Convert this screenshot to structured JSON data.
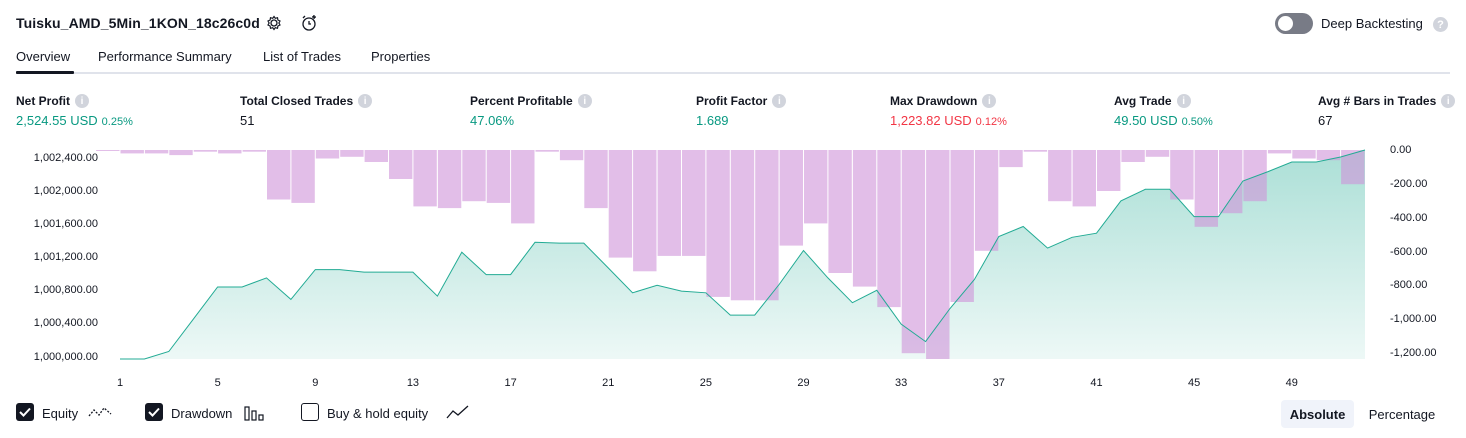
{
  "header": {
    "strategy_title": "Tuisku_AMD_5Min_1KON_18c26c0d",
    "deep_backtesting_label": "Deep Backtesting",
    "deep_backtesting_on": false,
    "help_glyph": "?"
  },
  "tabs": [
    {
      "label": "Overview",
      "active": true
    },
    {
      "label": "Performance Summary",
      "active": false
    },
    {
      "label": "List of Trades",
      "active": false
    },
    {
      "label": "Properties",
      "active": false
    }
  ],
  "metrics": [
    {
      "label": "Net Profit",
      "value": "2,524.55 USD",
      "pct": "0.25%",
      "color": "#089981"
    },
    {
      "label": "Total Closed Trades",
      "value": "51",
      "pct": "",
      "color": "#131722"
    },
    {
      "label": "Percent Profitable",
      "value": "47.06%",
      "pct": "",
      "color": "#089981"
    },
    {
      "label": "Profit Factor",
      "value": "1.689",
      "pct": "",
      "color": "#089981"
    },
    {
      "label": "Max Drawdown",
      "value": "1,223.82 USD",
      "pct": "0.12%",
      "color": "#f23645"
    },
    {
      "label": "Avg Trade",
      "value": "49.50 USD",
      "pct": "0.50%",
      "color": "#089981"
    },
    {
      "label": "Avg # Bars in Trades",
      "value": "67",
      "pct": "",
      "color": "#131722"
    }
  ],
  "chart_data": {
    "type": "area",
    "x_ticks": [
      "1",
      "5",
      "9",
      "13",
      "17",
      "21",
      "25",
      "29",
      "33",
      "37",
      "41",
      "45",
      "49"
    ],
    "left_axis": {
      "ticks": [
        "1,000,000.00",
        "1,000,400.00",
        "1,000,800.00",
        "1,001,200.00",
        "1,001,600.00",
        "1,002,000.00",
        "1,002,400.00"
      ],
      "ylim": [
        1000000,
        1002524.55
      ]
    },
    "right_axis": {
      "ticks": [
        "0.00",
        "-200.00",
        "-400.00",
        "-600.00",
        "-800.00",
        "-1,000.00",
        "-1,200.00"
      ],
      "ylim": [
        -1223.82,
        0
      ]
    },
    "series": [
      {
        "name": "Equity",
        "color": "#22ab94",
        "x": [
          1,
          2,
          3,
          4,
          5,
          6,
          7,
          8,
          9,
          10,
          11,
          12,
          13,
          14,
          15,
          16,
          17,
          18,
          19,
          20,
          21,
          22,
          23,
          24,
          25,
          26,
          27,
          28,
          29,
          30,
          31,
          32,
          33,
          34,
          35,
          36,
          37,
          38,
          39,
          40,
          41,
          42,
          43,
          44,
          45,
          46,
          47,
          48,
          49,
          50,
          51,
          52
        ],
        "values": [
          1000000,
          1000000,
          1000090,
          1000480,
          1000870,
          1000870,
          1000980,
          1000720,
          1001080,
          1001080,
          1001050,
          1001050,
          1001050,
          1000760,
          1001290,
          1001020,
          1001020,
          1001410,
          1001400,
          1001400,
          1001100,
          1000800,
          1000890,
          1000820,
          1000800,
          1000530,
          1000530,
          1000900,
          1001310,
          1000980,
          1000680,
          1000830,
          1000420,
          1000210,
          1000610,
          1000960,
          1001480,
          1001600,
          1001340,
          1001470,
          1001520,
          1001910,
          1002050,
          1002050,
          1001720,
          1001720,
          1002150,
          1002260,
          1002380,
          1002380,
          1002440,
          1002524.55
        ]
      },
      {
        "name": "Drawdown",
        "color": "#ce93d8",
        "x": [
          1,
          2,
          3,
          4,
          5,
          6,
          7,
          8,
          9,
          10,
          11,
          12,
          13,
          14,
          15,
          16,
          17,
          18,
          19,
          20,
          21,
          22,
          23,
          24,
          25,
          26,
          27,
          28,
          29,
          30,
          31,
          32,
          33,
          34,
          35,
          36,
          37,
          38,
          39,
          40,
          41,
          42,
          43,
          44,
          45,
          46,
          47,
          48,
          49,
          50,
          51,
          52
        ],
        "values": [
          0,
          -20,
          -20,
          -30,
          -10,
          -20,
          -10,
          -290,
          -310,
          -50,
          -40,
          -70,
          -170,
          -330,
          -340,
          -300,
          -310,
          -430,
          -10,
          -60,
          -340,
          -630,
          -710,
          -620,
          -620,
          -860,
          -880,
          -880,
          -560,
          -430,
          -720,
          -800,
          -920,
          -1190,
          -1223.82,
          -890,
          -590,
          -100,
          -10,
          -300,
          -330,
          -240,
          -70,
          -40,
          -290,
          -450,
          -370,
          -300,
          -20,
          -50,
          -60,
          -200
        ]
      }
    ]
  },
  "legend": {
    "equity": {
      "label": "Equity",
      "checked": true
    },
    "drawdown": {
      "label": "Drawdown",
      "checked": true
    },
    "buy_hold": {
      "label": "Buy & hold equity",
      "checked": false
    }
  },
  "view_toggle": {
    "absolute": "Absolute",
    "percentage": "Percentage",
    "selected": "absolute"
  }
}
